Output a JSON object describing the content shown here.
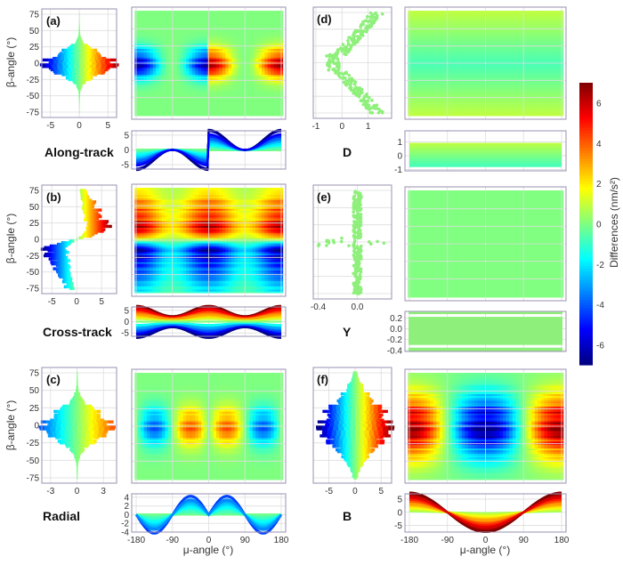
{
  "colors": {
    "frame": "#9a90b0",
    "grid": "#dddddd",
    "colormap": "jet"
  },
  "colorbar": {
    "label": "Differences (nm/s²)",
    "range": [
      -7,
      7
    ],
    "ticks": [
      "6",
      "4",
      "2",
      "0",
      "-2",
      "-4",
      "-6"
    ]
  },
  "axes": {
    "beta_label": "β-angle (°)",
    "mu_label": "μ-angle (°)",
    "beta_ticks": [
      "75",
      "50",
      "25",
      "0",
      "-25",
      "-50",
      "-75"
    ],
    "mu_ticks": [
      "-180",
      "-90",
      "0",
      "90",
      "180"
    ]
  },
  "chart_data": [
    {
      "id": "a",
      "type": "heatmap",
      "panel_label": "(a)",
      "row_label": "Along-track",
      "mu_range": [
        -180,
        180
      ],
      "beta_range": [
        -75,
        75
      ],
      "profile_xticks": [
        "-5",
        "0",
        "5"
      ],
      "profile_xlim": [
        -6.5,
        6.5
      ],
      "strip_yticks": [
        "5",
        "0",
        "-5"
      ],
      "strip_ylim": [
        -6.5,
        6.5
      ],
      "extremes": [
        -6,
        6
      ]
    },
    {
      "id": "b",
      "type": "heatmap",
      "panel_label": "(b)",
      "row_label": "Cross-track",
      "mu_range": [
        -180,
        180
      ],
      "beta_range": [
        -75,
        75
      ],
      "profile_xticks": [
        "-5",
        "0",
        "5"
      ],
      "profile_xlim": [
        -7,
        8
      ],
      "strip_yticks": [
        "5",
        "0",
        "-5"
      ],
      "strip_ylim": [
        -6.5,
        6.5
      ],
      "extremes": [
        -6,
        7
      ]
    },
    {
      "id": "c",
      "type": "heatmap",
      "panel_label": "(c)",
      "row_label": "Radial",
      "mu_range": [
        -180,
        180
      ],
      "beta_range": [
        -75,
        75
      ],
      "profile_xticks": [
        "-3",
        "0",
        "3"
      ],
      "profile_xlim": [
        -4,
        4.5
      ],
      "strip_yticks": [
        "4",
        "2",
        "0",
        "-2",
        "-4"
      ],
      "strip_ylim": [
        -4,
        4.8
      ],
      "extremes": [
        -4,
        4
      ]
    },
    {
      "id": "d",
      "type": "heatmap",
      "panel_label": "(d)",
      "row_label": "D",
      "mu_range": [
        -180,
        180
      ],
      "beta_range": [
        -75,
        75
      ],
      "profile_xticks": [
        "-1",
        "0",
        "1"
      ],
      "profile_xlim": [
        -1.1,
        1.9
      ],
      "strip_yticks": [
        "1",
        "0",
        "-1"
      ],
      "strip_ylim": [
        -1.1,
        1.8
      ],
      "extremes": [
        -0.9,
        1.7
      ]
    },
    {
      "id": "e",
      "type": "heatmap",
      "panel_label": "(e)",
      "row_label": "Y",
      "mu_range": [
        -180,
        180
      ],
      "beta_range": [
        -75,
        75
      ],
      "profile_xticks": [
        "-0.4",
        "0.0"
      ],
      "profile_xlim": [
        -0.45,
        0.35
      ],
      "strip_yticks": [
        "0.2",
        "0.0",
        "-0.2",
        "-0.4"
      ],
      "strip_ylim": [
        -0.42,
        0.32
      ],
      "extremes": [
        -0.4,
        0.3
      ]
    },
    {
      "id": "f",
      "type": "heatmap",
      "panel_label": "(f)",
      "row_label": "B",
      "mu_range": [
        -180,
        180
      ],
      "beta_range": [
        -75,
        75
      ],
      "profile_xticks": [
        "-5",
        "0",
        "5"
      ],
      "profile_xlim": [
        -8,
        7
      ],
      "strip_yticks": [
        "5",
        "0",
        "-5"
      ],
      "strip_ylim": [
        -7.5,
        7
      ],
      "extremes": [
        -7,
        6
      ]
    }
  ]
}
